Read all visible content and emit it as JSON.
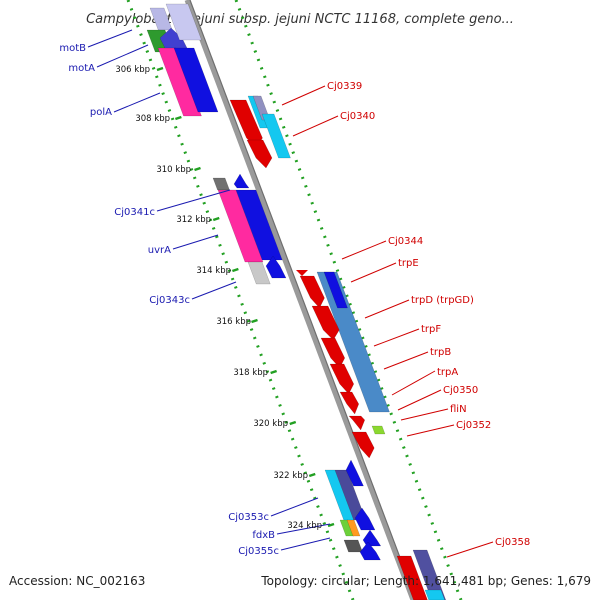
{
  "title": "Campylobacter jejuni subsp. jejuni NCTC 11168, complete geno...",
  "footer": {
    "accession": "Accession: NC_002163",
    "topology": "Topology: circular; Length: 1,641,481 bp; Genes: 1,679"
  },
  "ticks": [
    "306 kbp",
    "308 kbp",
    "310 kbp",
    "312 kbp",
    "314 kbp",
    "316 kbp",
    "318 kbp",
    "320 kbp",
    "322 kbp",
    "324 kbp"
  ],
  "left_labels": [
    "motB",
    "motA",
    "polA",
    "Cj0341c",
    "uvrA",
    "Cj0343c",
    "Cj0353c",
    "fdxB",
    "Cj0355c"
  ],
  "right_labels": [
    "Cj0339",
    "Cj0340",
    "Cj0344",
    "trpE",
    "trpD (trpGD)",
    "trpF",
    "trpB",
    "trpA",
    "Cj0350",
    "fliN",
    "Cj0352",
    "Cj0358"
  ],
  "colors": {
    "left_label": "#1a1ab0",
    "right_label": "#d00000",
    "backbone": "#888888",
    "tick": "#22a022"
  }
}
